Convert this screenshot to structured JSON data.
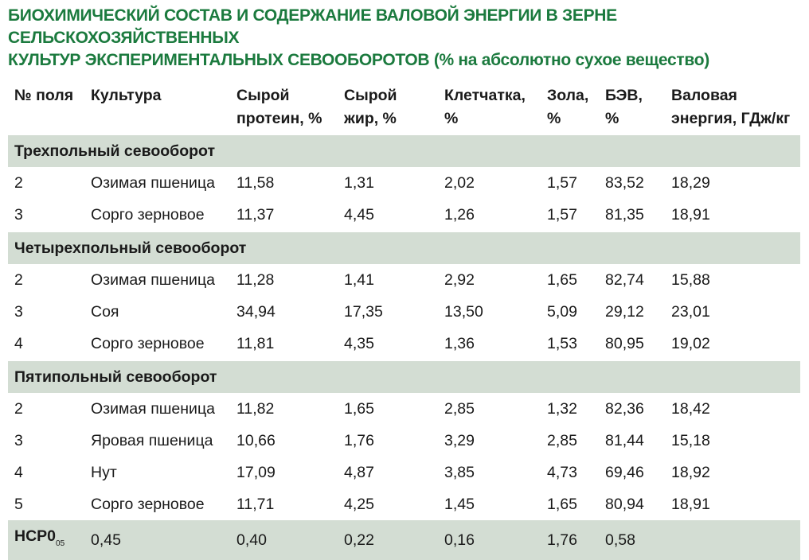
{
  "title": {
    "line1": "БИОХИМИЧЕСКИЙ СОСТАВ И СОДЕРЖАНИЕ ВАЛОВОЙ ЭНЕРГИИ В ЗЕРНЕ СЕЛЬСКОХОЗЯЙСТВЕННЫХ",
    "line2": "КУЛЬТУР ЭКСПЕРИМЕНТАЛЬНЫХ СЕВООБОРОТОВ",
    "line2_sub": "(% на абсолютно сухое вещество)"
  },
  "columns": [
    {
      "line1": "№ поля",
      "line2": ""
    },
    {
      "line1": "Культура",
      "line2": ""
    },
    {
      "line1": "Сырой",
      "line2": "протеин, %"
    },
    {
      "line1": "Сырой",
      "line2": "жир, %"
    },
    {
      "line1": "Клетчатка,",
      "line2": "%"
    },
    {
      "line1": "Зола,",
      "line2": "%"
    },
    {
      "line1": "БЭВ,",
      "line2": "%"
    },
    {
      "line1": "Валовая",
      "line2": "энергия, ГДж/кг"
    }
  ],
  "groups": [
    {
      "name": "Трехпольный севооборот",
      "rows": [
        [
          "2",
          "Озимая пшеница",
          "11,58",
          "1,31",
          "2,02",
          "1,57",
          "83,52",
          "18,29"
        ],
        [
          "3",
          "Сорго зерновое",
          "11,37",
          "4,45",
          "1,26",
          "1,57",
          "81,35",
          "18,91"
        ]
      ]
    },
    {
      "name": "Четырехпольный севооборот",
      "rows": [
        [
          "2",
          "Озимая пшеница",
          "11,28",
          "1,41",
          "2,92",
          "1,65",
          "82,74",
          "15,88"
        ],
        [
          "3",
          "Соя",
          "34,94",
          "17,35",
          "13,50",
          "5,09",
          "29,12",
          "23,01"
        ],
        [
          "4",
          "Сорго зерновое",
          "11,81",
          "4,35",
          "1,36",
          "1,53",
          "80,95",
          "19,02"
        ]
      ]
    },
    {
      "name": "Пятипольный севооборот",
      "rows": [
        [
          "2",
          "Озимая пшеница",
          "11,82",
          "1,65",
          "2,85",
          "1,32",
          "82,36",
          "18,42"
        ],
        [
          "3",
          "Яровая пшеница",
          "10,66",
          "1,76",
          "3,29",
          "2,85",
          "81,44",
          "15,18"
        ],
        [
          "4",
          "Нут",
          "17,09",
          "4,87",
          "3,85",
          "4,73",
          "69,46",
          "18,92"
        ],
        [
          "5",
          "Сорго зерновое",
          "11,71",
          "4,25",
          "1,45",
          "1,65",
          "80,94",
          "18,91"
        ]
      ]
    }
  ],
  "footer": {
    "label": "НСР0",
    "label_sub": "05",
    "values": [
      "0,45",
      "0,40",
      "0,22",
      "0,16",
      "1,76",
      "0,58",
      ""
    ]
  },
  "colors": {
    "title": "#1b7a3e",
    "group_band": "#d3ddd3"
  }
}
